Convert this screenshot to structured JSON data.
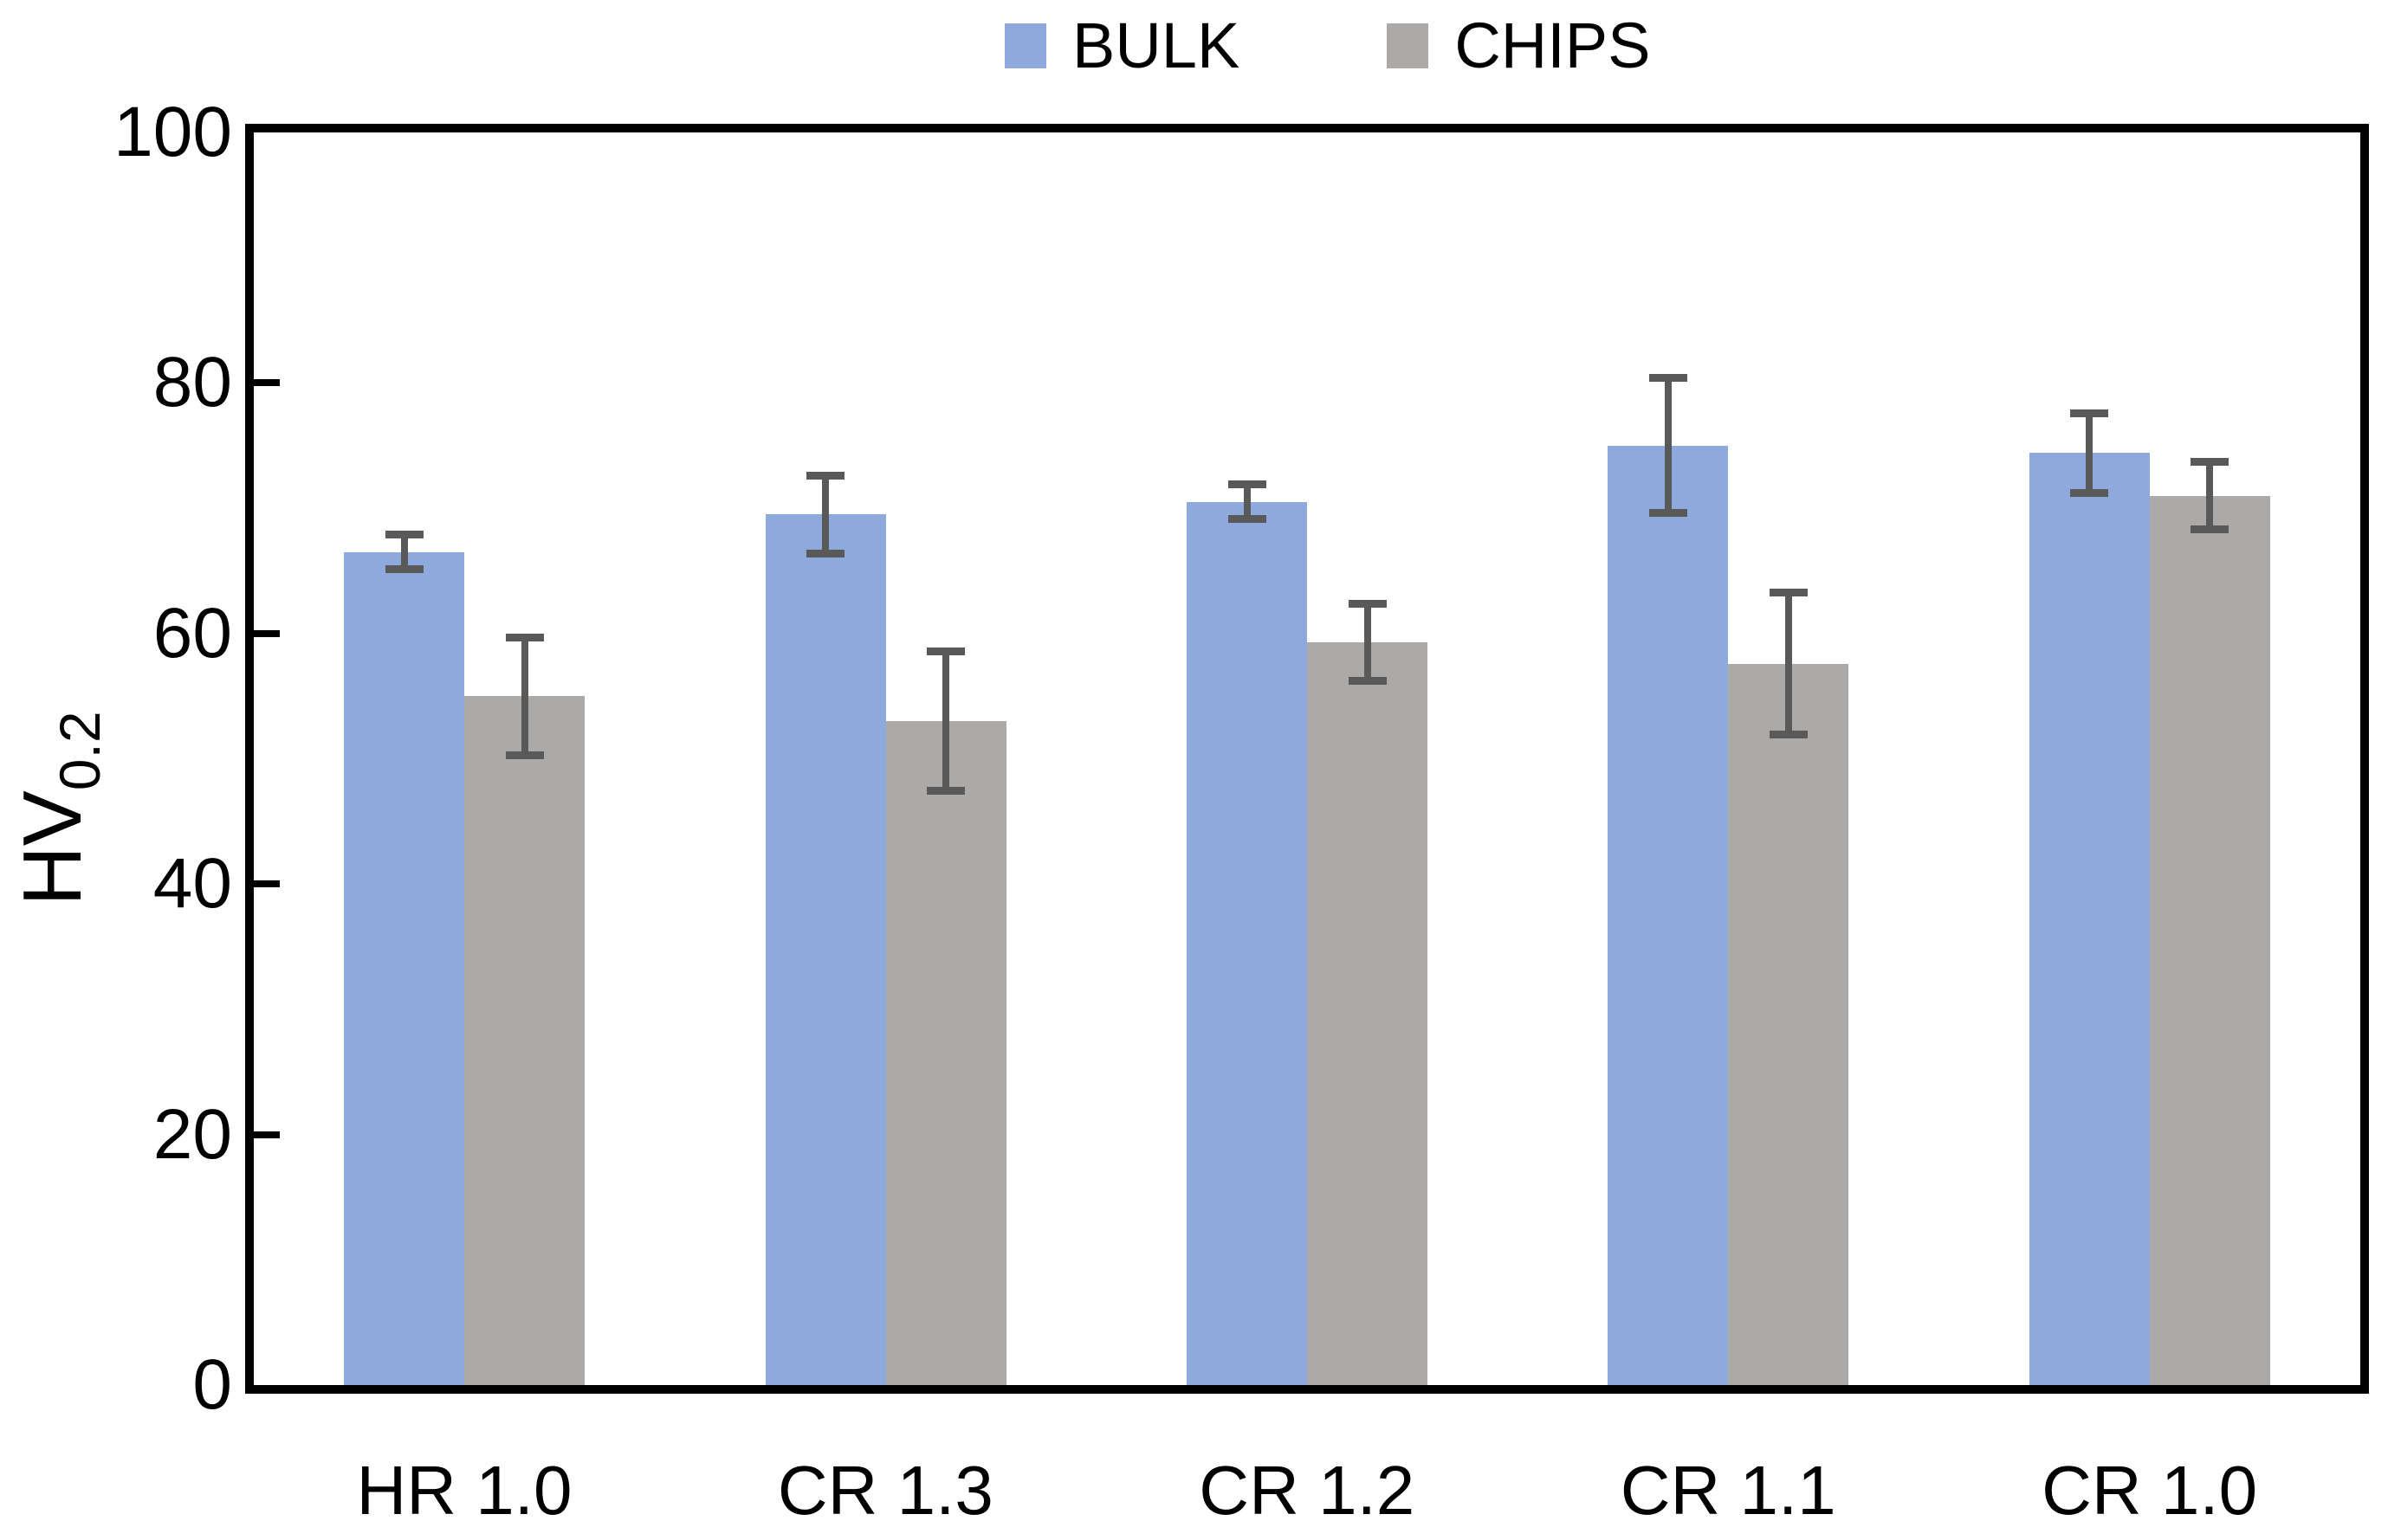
{
  "chart_data": {
    "type": "bar",
    "title": "",
    "categories": [
      "HR 1.0",
      "CR 1.3",
      "CR 1.2",
      "CR 1.1",
      "CR 1.0"
    ],
    "series": [
      {
        "name": "BULK",
        "color": "#8EA9DB",
        "values": [
          66.5,
          69.5,
          70.5,
          75.0,
          74.4
        ],
        "errors": [
          1.7,
          3.4,
          1.7,
          5.7,
          3.5
        ]
      },
      {
        "name": "CHIPS",
        "color": "#ACA9A9",
        "values": [
          55.0,
          53.0,
          59.3,
          57.6,
          71.0
        ],
        "errors": [
          5.0,
          5.9,
          3.4,
          6.0,
          3.0
        ]
      }
    ],
    "xlabel": "",
    "ylabel": "HV",
    "ylabel_subscript": "0.2",
    "ylim": [
      0,
      100
    ],
    "ytick_step": 20,
    "ytick_labels": [
      "0",
      "20",
      "40",
      "60",
      "80",
      "100"
    ],
    "grid": false,
    "legend_position": "top-center",
    "error_bar_color": "#595959",
    "axis_color": "#000000",
    "background_color": "#FFFFFF"
  }
}
